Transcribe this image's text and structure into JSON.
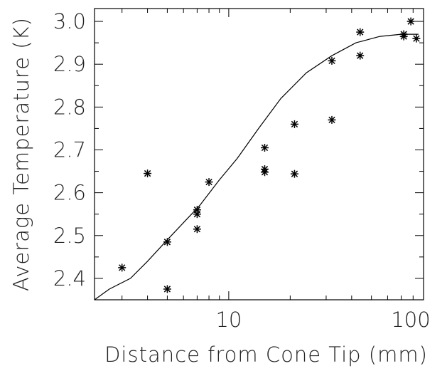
{
  "chart_data": {
    "type": "scatter",
    "title": "",
    "xlabel": "Distance from Cone Tip (mm)",
    "ylabel": "Average Temperature (K)",
    "xscale": "log",
    "xlim": [
      2.2,
      90
    ],
    "ylim": [
      2.35,
      3.03
    ],
    "x_ticks": [
      10,
      100
    ],
    "x_tick_labels": [
      "10",
      "100"
    ],
    "y_ticks": [
      2.4,
      2.5,
      2.6,
      2.7,
      2.8,
      2.9,
      3.0
    ],
    "y_tick_labels": [
      "2.4",
      "2.5",
      "2.6",
      "2.7",
      "2.8",
      "2.9",
      "3.0"
    ],
    "grid": false,
    "series": [
      {
        "kind": "scatter",
        "marker": "asterisk",
        "x": [
          3.0,
          4.0,
          5.0,
          5.0,
          7.0,
          7.0,
          7.0,
          8.0,
          15,
          15,
          15,
          21,
          21,
          32,
          32,
          44,
          44,
          72,
          72,
          78,
          83
        ],
        "y": [
          2.425,
          2.645,
          2.485,
          2.375,
          2.515,
          2.55,
          2.56,
          2.625,
          2.705,
          2.655,
          2.648,
          2.76,
          2.644,
          2.77,
          2.908,
          2.975,
          2.92,
          2.97,
          2.965,
          3.0,
          2.96
        ]
      },
      {
        "kind": "line",
        "x": [
          2.2,
          2.6,
          3.3,
          4.0,
          5.0,
          6.0,
          7.2,
          9.0,
          11,
          14,
          18,
          24,
          32,
          42,
          55,
          70,
          85
        ],
        "y": [
          2.35,
          2.375,
          2.4,
          2.44,
          2.49,
          2.53,
          2.57,
          2.63,
          2.68,
          2.75,
          2.82,
          2.88,
          2.92,
          2.95,
          2.965,
          2.97,
          2.97
        ]
      }
    ]
  }
}
